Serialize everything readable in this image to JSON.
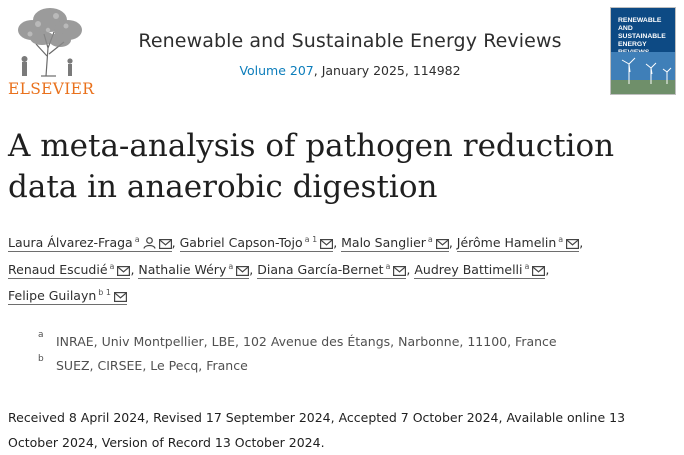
{
  "publisher": {
    "name": "ELSEVIER"
  },
  "journal": {
    "title": "Renewable and Sustainable Energy Reviews",
    "volume_link": "Volume 207",
    "issue_info": ", January 2025, 114982",
    "cover_text": "RENEWABLE\nAND\nSUSTAINABLE\nENERGY\nREVIEWS"
  },
  "article": {
    "title": "A meta-analysis of pathogen reduction data in anaerobic digestion"
  },
  "authors": [
    {
      "name": "Laura Álvarez-Fraga",
      "sup": "a",
      "icons": [
        "person-icon",
        "email-icon"
      ]
    },
    {
      "name": "Gabriel Capson-Tojo",
      "sup": "a 1",
      "icons": [
        "email-icon"
      ]
    },
    {
      "name": "Malo Sanglier",
      "sup": "a",
      "icons": [
        "email-icon"
      ]
    },
    {
      "name": "Jérôme Hamelin",
      "sup": "a",
      "icons": [
        "email-icon"
      ]
    },
    {
      "name": "Renaud Escudié",
      "sup": "a",
      "icons": [
        "email-icon"
      ]
    },
    {
      "name": "Nathalie Wéry",
      "sup": "a",
      "icons": [
        "email-icon"
      ]
    },
    {
      "name": "Diana García-Bernet",
      "sup": "a",
      "icons": [
        "email-icon"
      ]
    },
    {
      "name": "Audrey Battimelli",
      "sup": "a",
      "icons": [
        "email-icon"
      ]
    },
    {
      "name": "Felipe Guilayn",
      "sup": "b 1",
      "icons": [
        "email-icon"
      ]
    }
  ],
  "affiliations": [
    {
      "label": "a",
      "text": "INRAE, Univ Montpellier, LBE, 102 Avenue des Étangs, Narbonne, 11100, France"
    },
    {
      "label": "b",
      "text": "SUEZ, CIRSEE, Le Pecq, France"
    }
  ],
  "history": {
    "text": "Received 8 April 2024, Revised 17 September 2024, Accepted 7 October 2024, Available online 13 October 2024, Version of Record 13 October 2024."
  },
  "colors": {
    "publisher_orange": "#e9711c",
    "link_blue": "#0c7dbb",
    "cover_blue": "#0d4a84"
  }
}
